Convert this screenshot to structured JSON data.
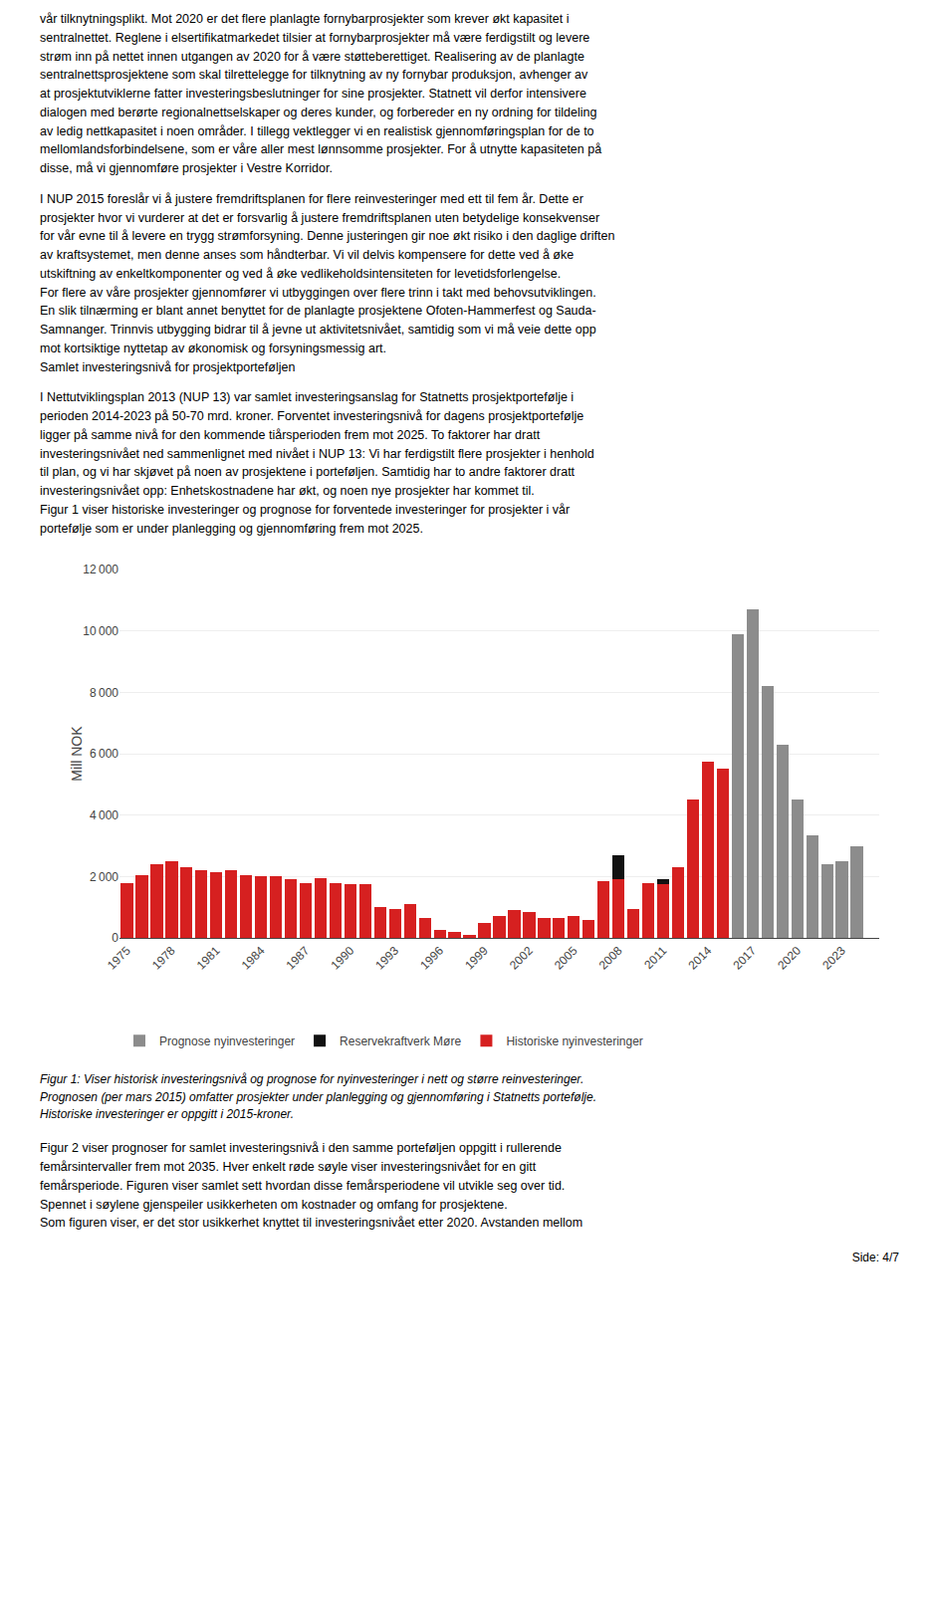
{
  "text_before": [
    "vår tilknytningsplikt. Mot 2020 er det flere planlagte fornybarprosjekter som krever økt kapasitet i\nsentralnettet. Reglene i elsertifikatmarkedet tilsier at fornybarprosjekter må være ferdigstilt og levere\nstrøm inn på nettet innen utgangen av 2020 for å være støtteberettiget. Realisering av de planlagte\nsentralnettsprosjektene som skal tilrettelegge for tilknytning av ny fornybar produksjon, avhenger av\nat prosjektutviklerne fatter investeringsbeslutninger for sine prosjekter. Statnett vil derfor intensivere\ndialogen med berørte regionalnettselskaper og deres kunder, og forbereder en ny ordning for tildeling\nav ledig nettkapasitet i noen områder. I tillegg vektlegger vi en realistisk gjennomføringsplan for de to\nmellomlandsforbindelsene, som er våre aller mest lønnsomme prosjekter. For å utnytte kapasiteten på\ndisse, må vi gjennomføre prosjekter i Vestre Korridor.",
    "I NUP 2015 foreslår vi å justere fremdriftsplanen for flere reinvesteringer med ett til fem år. Dette er\nprosjekter hvor vi vurderer at det er forsvarlig å justere fremdriftsplanen uten betydelige konsekvenser\nfor vår evne til å levere en trygg strømforsyning. Denne justeringen gir noe økt risiko i den daglige driften\nav kraftsystemet, men denne anses som håndterbar. Vi vil delvis kompensere for dette ved å øke\nutskiftning av enkeltkomponenter og ved å øke vedlikeholdsintensiteten for levetidsforlengelse.\nFor flere av våre prosjekter gjennomfører vi utbyggingen over flere trinn i takt med behovsutviklingen.\nEn slik tilnærming er blant annet benyttet for de planlagte prosjektene Ofoten-Hammerfest og Sauda-\nSamnanger. Trinnvis utbygging bidrar til å jevne ut aktivitetsnivået, samtidig som vi må veie dette opp\nmot kortsiktige nyttetap av økonomisk og forsyningsmessig art.\nSamlet investeringsnivå for prosjektporteføljen",
    "I Nettutviklingsplan 2013 (NUP 13) var samlet investeringsanslag for Statnetts prosjektportefølje i\nperioden 2014-2023 på 50-70 mrd. kroner. Forventet investeringsnivå for dagens prosjektportefølje\nligger på samme nivå for den kommende tiårsperioden frem mot 2025. To faktorer har dratt\ninvesteringsnivået ned sammenlignet med nivået i NUP 13: Vi har ferdigstilt flere prosjekter i henhold\ntil plan, og vi har skjøvet på noen av prosjektene i porteføljen. Samtidig har to andre faktorer dratt\ninvesteringsnivået opp: Enhetskostnadene har økt, og noen nye prosjekter har kommet til.\nFigur 1 viser historiske investeringer og prognose for forventede investeringer for prosjekter i vår\nportefølje som er under planlegging og gjennomføring frem mot 2025."
  ],
  "chart_data": {
    "type": "bar",
    "stacked": true,
    "ylabel": "Mill NOK",
    "categories": [
      "1975",
      null,
      null,
      "1978",
      null,
      null,
      "1981",
      null,
      null,
      "1984",
      null,
      null,
      "1987",
      null,
      null,
      "1990",
      null,
      null,
      "1993",
      null,
      null,
      "1996",
      null,
      null,
      "1999",
      null,
      null,
      "2002",
      null,
      null,
      "2005",
      null,
      null,
      "2008",
      null,
      null,
      "2011",
      null,
      null,
      "2014",
      null,
      null,
      "2017",
      null,
      null,
      "2020",
      null,
      null,
      "2023",
      null,
      null
    ],
    "series": [
      {
        "name": "Historiske nyinvesteringer",
        "color": "#d62020",
        "values": [
          1800,
          2050,
          2400,
          2500,
          2300,
          2200,
          2150,
          2200,
          2050,
          2000,
          2000,
          1900,
          1800,
          1950,
          1800,
          1750,
          1750,
          1000,
          950,
          1100,
          650,
          250,
          200,
          100,
          500,
          700,
          900,
          850,
          650,
          650,
          700,
          600,
          1850,
          1900,
          950,
          1800,
          1750,
          2300,
          4500,
          5750,
          5500,
          0,
          0,
          0,
          0,
          0,
          0,
          0,
          0,
          0,
          0
        ]
      },
      {
        "name": "Reservekraftverk Møre",
        "color": "#111111",
        "values": [
          0,
          0,
          0,
          0,
          0,
          0,
          0,
          0,
          0,
          0,
          0,
          0,
          0,
          0,
          0,
          0,
          0,
          0,
          0,
          0,
          0,
          0,
          0,
          0,
          0,
          0,
          0,
          0,
          0,
          0,
          0,
          0,
          0,
          800,
          0,
          0,
          150,
          0,
          0,
          0,
          0,
          0,
          0,
          0,
          0,
          0,
          0,
          0,
          0,
          0,
          0
        ]
      },
      {
        "name": "Prognose nyinvesteringer",
        "color": "#8c8c8c",
        "values": [
          0,
          0,
          0,
          0,
          0,
          0,
          0,
          0,
          0,
          0,
          0,
          0,
          0,
          0,
          0,
          0,
          0,
          0,
          0,
          0,
          0,
          0,
          0,
          0,
          0,
          0,
          0,
          0,
          0,
          0,
          0,
          0,
          0,
          0,
          0,
          0,
          0,
          0,
          0,
          0,
          0,
          9900,
          10700,
          8200,
          6300,
          4500,
          3350,
          2400,
          2500,
          3000,
          0
        ]
      }
    ],
    "ylim": [
      0,
      12000
    ],
    "yticks": [
      0,
      {
        "value": 2000,
        "label": "2 000"
      },
      {
        "value": 4000,
        "label": "4 000"
      },
      {
        "value": 6000,
        "label": "6 000"
      },
      {
        "value": 8000,
        "label": "8 000"
      },
      {
        "value": 10000,
        "label": "10 000"
      },
      {
        "value": 12000,
        "label": "12 000"
      }
    ],
    "grid": true,
    "legend": "bottom"
  },
  "caption": "Figur 1: Viser historisk investeringsnivå og prognose for nyinvesteringer i nett og større reinvesteringer.\nPrognosen (per mars 2015) omfatter prosjekter under planlegging og gjennomføring i Statnetts portefølje.\nHistoriske investeringer er oppgitt i 2015-kroner.",
  "text_after": [
    "Figur 2 viser prognoser for samlet investeringsnivå i den samme porteføljen oppgitt i rullerende\nfemårsintervaller frem mot 2035. Hver enkelt røde søyle viser investeringsnivået for en gitt\nfemårsperiode. Figuren viser samlet sett hvordan disse femårsperiodene vil utvikle seg over tid.\nSpennet i søylene gjenspeiler usikkerheten om kostnader og omfang for prosjektene.\nSom figuren viser, er det stor usikkerhet knyttet til investeringsnivået etter 2020. Avstanden mellom"
  ],
  "footer": "Side: 4/7"
}
